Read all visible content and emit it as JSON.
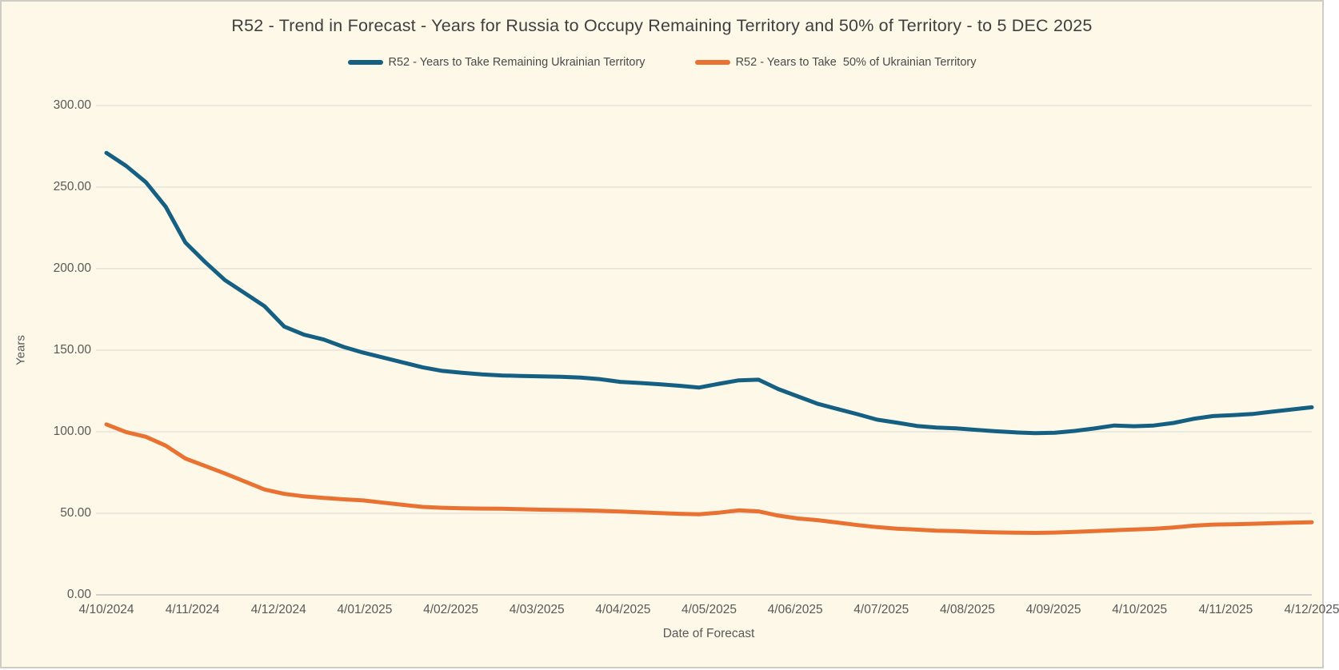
{
  "chart_data": {
    "type": "line",
    "title": "R52 - Trend in Forecast - Years for Russia to Occupy Remaining Territory and 50% of Territory - to 5 DEC 2025",
    "xlabel": "Date of Forecast",
    "ylabel": "Years",
    "ylim": [
      0,
      300
    ],
    "grid": true,
    "legend_position": "top",
    "background_color": "#FDF8E7",
    "grid_color": "#D9D9D9",
    "axis_line_color": "#C3C3C3",
    "text_color": "#595959",
    "title_color": "#3F3F3F",
    "yticks": [
      "300.00",
      "250.00",
      "200.00",
      "150.00",
      "100.00",
      "50.00",
      "0.00"
    ],
    "x_ticklabels": [
      "4/10/2024",
      "4/11/2024",
      "4/12/2024",
      "4/01/2025",
      "4/02/2025",
      "4/03/2025",
      "4/04/2025",
      "4/05/2025",
      "4/06/2025",
      "4/07/2025",
      "4/08/2025",
      "4/09/2025",
      "4/10/2025",
      "4/11/2025",
      "4/12/2025"
    ],
    "x": [
      "4/10/2024",
      "11/10/2024",
      "18/10/2024",
      "25/10/2024",
      "1/11/2024",
      "8/11/2024",
      "15/11/2024",
      "22/11/2024",
      "29/11/2024",
      "6/12/2024",
      "13/12/2024",
      "20/12/2024",
      "27/12/2024",
      "3/01/2025",
      "10/01/2025",
      "17/01/2025",
      "24/01/2025",
      "31/01/2025",
      "7/02/2025",
      "14/02/2025",
      "21/02/2025",
      "28/02/2025",
      "7/03/2025",
      "14/03/2025",
      "21/03/2025",
      "28/03/2025",
      "4/04/2025",
      "11/04/2025",
      "18/04/2025",
      "25/04/2025",
      "2/05/2025",
      "9/05/2025",
      "16/05/2025",
      "23/05/2025",
      "30/05/2025",
      "6/06/2025",
      "13/06/2025",
      "20/06/2025",
      "27/06/2025",
      "4/07/2025",
      "11/07/2025",
      "18/07/2025",
      "25/07/2025",
      "1/08/2025",
      "8/08/2025",
      "15/08/2025",
      "22/08/2025",
      "29/08/2025",
      "5/09/2025",
      "12/09/2025",
      "19/09/2025",
      "26/09/2025",
      "3/10/2025",
      "10/10/2025",
      "17/10/2025",
      "24/10/2025",
      "31/10/2025",
      "7/11/2025",
      "14/11/2025",
      "21/11/2025",
      "28/11/2025",
      "5/12/2025"
    ],
    "series": [
      {
        "name": "R52 - Years to Take Remaining Ukrainian Territory",
        "color": "#156082",
        "values": [
          271,
          263,
          253,
          238,
          216,
          204,
          193,
          185,
          177,
          164.5,
          159.5,
          156.5,
          152,
          148.5,
          145.5,
          142.5,
          139.5,
          137.3,
          136.2,
          135.2,
          134.5,
          134.2,
          133.9,
          133.7,
          133.2,
          132.2,
          130.6,
          129.9,
          129.1,
          128.2,
          127.1,
          129.4,
          131.5,
          131.9,
          126.2,
          121.6,
          117.1,
          113.9,
          110.8,
          107.4,
          105.6,
          103.6,
          102.6,
          102.1,
          101.2,
          100.3,
          99.6,
          99.1,
          99.4,
          100.5,
          102,
          103.8,
          103.4,
          103.8,
          105.4,
          107.9,
          109.6,
          110.2,
          110.9,
          112.3,
          113.7,
          115
        ]
      },
      {
        "name": "R52 - Years to Take  50% of Ukrainian Territory",
        "color": "#E97132",
        "values": [
          104.5,
          99.8,
          96.9,
          91.5,
          83.6,
          79,
          74.4,
          69.5,
          64.6,
          61.9,
          60.4,
          59.4,
          58.6,
          57.9,
          56.5,
          55.2,
          53.9,
          53.4,
          53.1,
          52.9,
          52.8,
          52.5,
          52.2,
          52,
          51.8,
          51.5,
          51.1,
          50.6,
          50.1,
          49.7,
          49.4,
          50.4,
          51.8,
          51.2,
          48.6,
          46.8,
          45.8,
          44.3,
          42.8,
          41.5,
          40.6,
          40,
          39.3,
          39.1,
          38.6,
          38.3,
          38.1,
          38,
          38.2,
          38.6,
          39.1,
          39.6,
          40.1,
          40.5,
          41.3,
          42.4,
          43.1,
          43.3,
          43.6,
          43.9,
          44.2,
          44.5
        ]
      }
    ]
  }
}
